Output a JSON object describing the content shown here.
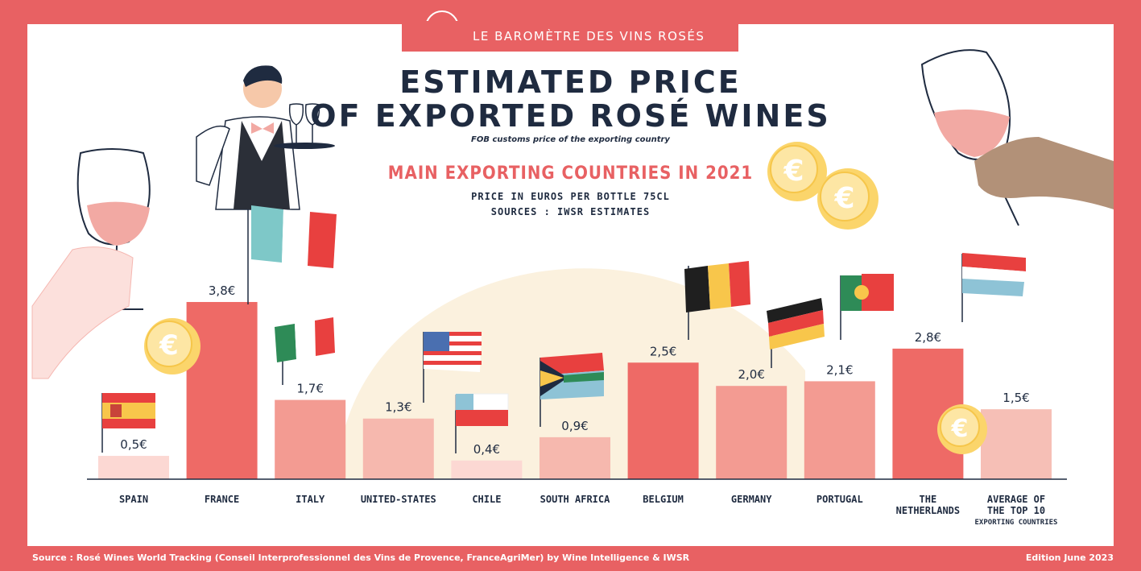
{
  "banner": {
    "text": "LE BAROMÈTRE DES VINS ROSÉS"
  },
  "title": {
    "line1": "ESTIMATED PRICE",
    "line2": "OF EXPORTED ROSÉ WINES"
  },
  "subtitle": "FOB customs price of the exporting country",
  "heading": "MAIN EXPORTING COUNTRIES IN 2021",
  "unit": "PRICE IN EUROS PER BOTTLE   75CL",
  "sources": "SOURCES : IWSR ESTIMATES",
  "footer": {
    "source": "Source : Rosé Wines World Tracking (Conseil Interprofessionnel des Vins de Provence, FranceAgriMer) by Wine Intelligence & IWSR",
    "edition": "Edition June 2023"
  },
  "colors": {
    "background": "#e86163",
    "title": "#1f2b40"
  },
  "chart_data": {
    "type": "bar",
    "categories": [
      [
        "SPAIN"
      ],
      [
        "FRANCE"
      ],
      [
        "ITALY"
      ],
      [
        "UNITED-STATES"
      ],
      [
        "CHILE"
      ],
      [
        "SOUTH AFRICA"
      ],
      [
        "BELGIUM"
      ],
      [
        "GERMANY"
      ],
      [
        "PORTUGAL"
      ],
      [
        "THE",
        "NETHERLANDS"
      ],
      [
        "AVERAGE OF",
        "THE TOP 10"
      ]
    ],
    "category_notes": [
      "",
      "",
      "",
      "",
      "",
      "",
      "",
      "",
      "",
      "",
      "EXPORTING COUNTRIES"
    ],
    "values": [
      0.5,
      3.8,
      1.7,
      1.3,
      0.4,
      0.9,
      2.5,
      2.0,
      2.1,
      2.8,
      1.5
    ],
    "value_labels": [
      "0,5€",
      "3,8€",
      "1,7€",
      "1,3€",
      "0,4€",
      "0,9€",
      "2,5€",
      "2,0€",
      "2,1€",
      "2,8€",
      "1,5€"
    ],
    "bar_colors": [
      "#fcd8d3",
      "#ee6a66",
      "#f39b92",
      "#f6b8ae",
      "#fcd8d3",
      "#f6b8ae",
      "#ee6a66",
      "#f39b92",
      "#f39b92",
      "#ee6a66",
      "#f6bfb6"
    ],
    "ylim": [
      0,
      4
    ],
    "grid": false,
    "legend": "none"
  }
}
